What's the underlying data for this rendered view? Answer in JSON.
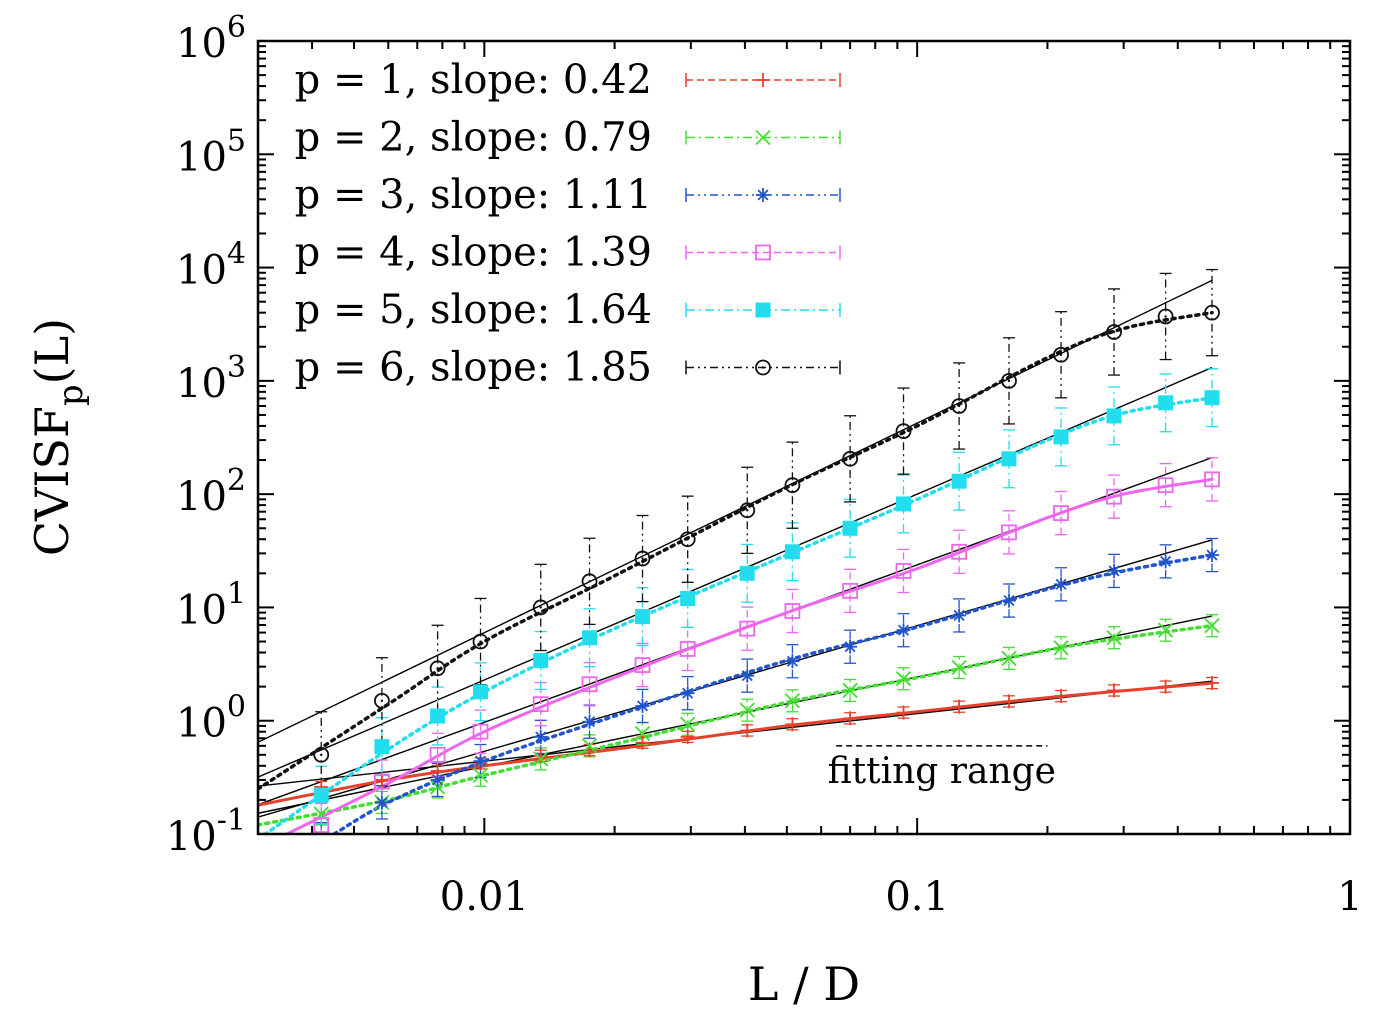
{
  "chart_data": {
    "type": "line",
    "title": "",
    "xlabel": "L / D",
    "ylabel": "CVISF",
    "ylabel_sub": "p",
    "ylabel_suffix": "(L)",
    "xscale": "log",
    "yscale": "log",
    "xlim": [
      0.003,
      1
    ],
    "ylim": [
      0.1,
      1000000
    ],
    "x_ticks": [
      {
        "value": 0.01,
        "label": "0.01"
      },
      {
        "value": 0.1,
        "label": "0.1"
      },
      {
        "value": 1,
        "label": "1"
      }
    ],
    "y_ticks": [
      {
        "value": 0.1,
        "base": "10",
        "exp": "-1"
      },
      {
        "value": 1,
        "base": "10",
        "exp": "0"
      },
      {
        "value": 10,
        "base": "10",
        "exp": "1"
      },
      {
        "value": 100,
        "base": "10",
        "exp": "2"
      },
      {
        "value": 1000,
        "base": "10",
        "exp": "3"
      },
      {
        "value": 10000,
        "base": "10",
        "exp": "4"
      },
      {
        "value": 100000,
        "base": "10",
        "exp": "5"
      },
      {
        "value": 1000000,
        "base": "10",
        "exp": "6"
      }
    ],
    "legend_position": "top-left",
    "grid": false,
    "x": [
      0.0042,
      0.0058,
      0.0078,
      0.0098,
      0.0135,
      0.0175,
      0.0232,
      0.0295,
      0.0405,
      0.0515,
      0.07,
      0.093,
      0.125,
      0.163,
      0.215,
      0.285,
      0.375,
      0.48
    ],
    "series": [
      {
        "name": "p = 1, slope: 0.42",
        "p": 1,
        "slope": 0.42,
        "color": "#e8402a",
        "marker": "plus",
        "dash": "7,4",
        "values": [
          0.26,
          0.3,
          0.36,
          0.42,
          0.49,
          0.55,
          0.64,
          0.72,
          0.82,
          0.93,
          1.05,
          1.18,
          1.33,
          1.48,
          1.65,
          1.85,
          2.0,
          2.15
        ],
        "err_factor": 1.12,
        "fit_curve": {
          "x": [
            0.003,
            0.006,
            0.01,
            0.02,
            0.05,
            0.1,
            0.2,
            0.48
          ],
          "y": [
            0.18,
            0.3,
            0.4,
            0.56,
            0.9,
            1.2,
            1.6,
            2.15
          ],
          "color": "#e8402a"
        },
        "fit_line": {
          "amplitude": 3.04
        }
      },
      {
        "name": "p = 2, slope: 0.79",
        "p": 2,
        "slope": 0.79,
        "color": "#44dd33",
        "marker": "x",
        "dash": "9,4,2,4",
        "values": [
          0.15,
          0.19,
          0.26,
          0.33,
          0.46,
          0.6,
          0.77,
          0.93,
          1.24,
          1.5,
          1.85,
          2.35,
          2.95,
          3.55,
          4.4,
          5.4,
          6.3,
          6.9
        ],
        "err_factor": 1.25,
        "fit_curve": {
          "x": [
            0.003,
            0.006,
            0.01,
            0.02,
            0.05,
            0.1,
            0.2,
            0.3,
            0.48
          ],
          "y": [
            0.12,
            0.2,
            0.33,
            0.62,
            1.45,
            2.4,
            4.2,
            5.4,
            6.9
          ],
          "color": "#44dd33"
        },
        "fit_line": {
          "amplitude": 15.0
        }
      },
      {
        "name": "p = 3, slope: 1.11",
        "p": 3,
        "slope": 1.11,
        "color": "#2255cc",
        "marker": "star",
        "dash": "8,4,2,4,2,4",
        "values": [
          0.09,
          0.19,
          0.3,
          0.44,
          0.72,
          0.98,
          1.35,
          1.75,
          2.5,
          3.35,
          4.5,
          6.3,
          8.5,
          11.5,
          16,
          21,
          25.5,
          29
        ],
        "err_factor": 1.4,
        "fit_curve": {
          "x": [
            0.0045,
            0.006,
            0.01,
            0.02,
            0.05,
            0.1,
            0.2,
            0.3,
            0.48
          ],
          "y": [
            0.1,
            0.19,
            0.44,
            1.1,
            3.4,
            6.7,
            14.5,
            21.0,
            29.0
          ],
          "color": "#2255cc"
        },
        "fit_line": {
          "amplitude": 89.0
        }
      },
      {
        "name": "p = 4, slope: 1.39",
        "p": 4,
        "slope": 1.39,
        "color": "#ee66ee",
        "marker": "square",
        "dash": "7,4",
        "values": [
          0.12,
          0.29,
          0.5,
          0.8,
          1.4,
          2.1,
          3.1,
          4.3,
          6.5,
          9.3,
          14,
          21,
          31,
          46,
          68,
          95,
          120,
          135
        ],
        "err_factor": 1.55,
        "fit_curve": {
          "x": [
            0.0035,
            0.006,
            0.01,
            0.02,
            0.05,
            0.1,
            0.2,
            0.3,
            0.48
          ],
          "y": [
            0.1,
            0.28,
            0.8,
            2.4,
            9.0,
            22.0,
            62.0,
            100.0,
            135.0
          ],
          "color": "#ee66ee"
        },
        "fit_line": {
          "amplitude": 583.0
        }
      },
      {
        "name": "p = 5, slope: 1.64",
        "p": 5,
        "slope": 1.64,
        "color": "#22ddee",
        "marker": "filled-square",
        "dash": "9,4,2,4",
        "values": [
          0.22,
          0.59,
          1.1,
          1.8,
          3.4,
          5.4,
          8.3,
          12,
          20,
          31,
          50,
          82,
          130,
          205,
          320,
          490,
          640,
          710
        ],
        "err_factor": 1.8,
        "fit_curve": {
          "x": [
            0.003,
            0.006,
            0.01,
            0.02,
            0.05,
            0.1,
            0.2,
            0.3,
            0.48
          ],
          "y": [
            0.09,
            0.56,
            1.8,
            6.5,
            29.0,
            90.0,
            300.0,
            520.0,
            710.0
          ],
          "color": "#22ddee"
        },
        "fit_line": {
          "amplitude": 4365.0
        }
      },
      {
        "name": "p = 6, slope: 1.85",
        "p": 6,
        "slope": 1.85,
        "color": "#111111",
        "marker": "circle",
        "dash": "8,4,2,4,2,4",
        "values": [
          0.5,
          1.5,
          2.9,
          5,
          10,
          17,
          27,
          40,
          72,
          120,
          205,
          360,
          600,
          1000,
          1700,
          2700,
          3700,
          4000
        ],
        "err_factor": 2.4,
        "fit_curve": {
          "x": [
            0.003,
            0.006,
            0.01,
            0.02,
            0.05,
            0.1,
            0.2,
            0.3,
            0.48
          ],
          "y": [
            0.25,
            1.4,
            5.0,
            19.0,
            115.0,
            400.0,
            1600.0,
            2900.0,
            4000.0
          ],
          "color": "#111111"
        },
        "fit_line": {
          "amplitude": 30000.0
        }
      }
    ],
    "annotations": [
      {
        "text": "fitting range",
        "x_start": 0.065,
        "x_end": 0.2,
        "y": 0.6
      }
    ]
  }
}
